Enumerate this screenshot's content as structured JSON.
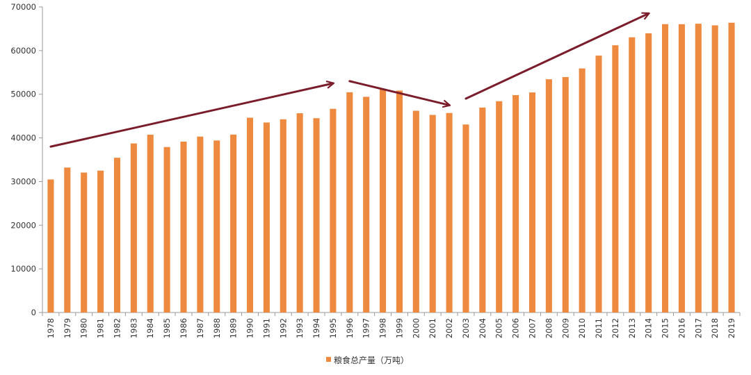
{
  "chart_data": {
    "type": "bar",
    "categories": [
      "1978",
      "1979",
      "1980",
      "1981",
      "1982",
      "1983",
      "1984",
      "1985",
      "1986",
      "1987",
      "1988",
      "1989",
      "1990",
      "1991",
      "1992",
      "1993",
      "1994",
      "1995",
      "1996",
      "1997",
      "1998",
      "1999",
      "2000",
      "2001",
      "2002",
      "2003",
      "2004",
      "2005",
      "2006",
      "2007",
      "2008",
      "2009",
      "2010",
      "2011",
      "2012",
      "2013",
      "2014",
      "2015",
      "2016",
      "2017",
      "2018",
      "2019"
    ],
    "series": [
      {
        "name": "粮食总产量（万吨）",
        "color": "#ed8a3f",
        "values": [
          30477,
          33212,
          32056,
          32502,
          35450,
          38728,
          40731,
          37911,
          39151,
          40298,
          39408,
          40755,
          44624,
          43529,
          44266,
          45649,
          44510,
          46662,
          50454,
          49417,
          51230,
          50839,
          46218,
          45264,
          45706,
          43070,
          46947,
          48402,
          49804,
          50414,
          53434,
          53941,
          55911,
          58849,
          61223,
          63048,
          63965,
          66060,
          66044,
          66161,
          65789,
          66384
        ]
      }
    ],
    "yticks": [
      "0",
      "10000",
      "20000",
      "30000",
      "40000",
      "50000",
      "60000",
      "70000"
    ],
    "ylim": [
      0,
      70000
    ],
    "grid": false,
    "legend": "bottom-center",
    "annotation_color": "#7b1c2b",
    "trend_arrows": [
      {
        "from_x": "1978",
        "from_y": 38000,
        "to_x": "1995",
        "to_y": 52500
      },
      {
        "from_x": "1996",
        "from_y": 53000,
        "to_x": "2002",
        "to_y": 47500
      },
      {
        "from_x": "2003",
        "from_y": 49000,
        "to_x": "2014",
        "to_y": 68500
      }
    ]
  }
}
